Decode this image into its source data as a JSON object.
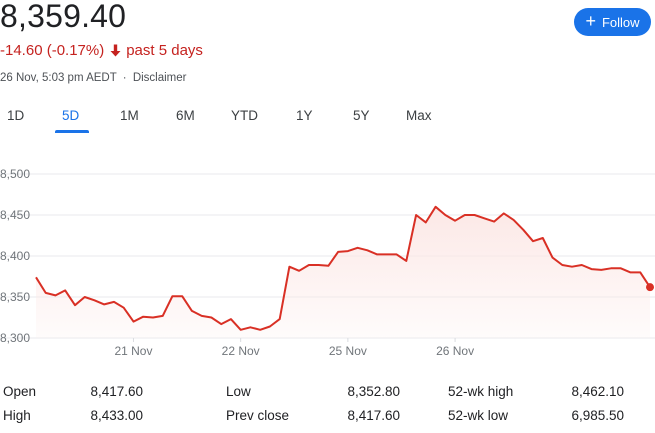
{
  "header": {
    "price": "8,359.40",
    "change": "-14.60 (-0.17%)",
    "period": "past 5 days",
    "timestamp": "26 Nov, 5:03 pm AEDT",
    "separator": "·",
    "disclaimer": "Disclaimer",
    "follow_label": "Follow",
    "change_color": "#c5221f"
  },
  "tabs": [
    {
      "label": "1D"
    },
    {
      "label": "5D",
      "active": true
    },
    {
      "label": "1M"
    },
    {
      "label": "6M"
    },
    {
      "label": "YTD"
    },
    {
      "label": "1Y"
    },
    {
      "label": "5Y"
    },
    {
      "label": "Max"
    }
  ],
  "chart_data": {
    "type": "line",
    "ylim": [
      8300,
      8500
    ],
    "y_ticks": [
      "8,500",
      "8,450",
      "8,400",
      "8,350",
      "8,300"
    ],
    "y_tick_values": [
      8500,
      8450,
      8400,
      8350,
      8300
    ],
    "x_tick_labels": [
      "21 Nov",
      "22 Nov",
      "25 Nov",
      "26 Nov"
    ],
    "x_tick_positions": [
      10,
      21,
      32,
      43
    ],
    "line_color": "#d93025",
    "grid": true,
    "values": [
      8374,
      8355,
      8352,
      8358,
      8340,
      8350,
      8346,
      8341,
      8344,
      8337,
      8320,
      8326,
      8325,
      8327,
      8351,
      8351,
      8333,
      8327,
      8325,
      8317,
      8323,
      8310,
      8313,
      8310,
      8314,
      8323,
      8387,
      8382,
      8389,
      8389,
      8388,
      8405,
      8406,
      8410,
      8407,
      8402,
      8402,
      8402,
      8394,
      8450,
      8441,
      8460,
      8450,
      8443,
      8450,
      8450,
      8446,
      8442,
      8452,
      8444,
      8432,
      8418,
      8422,
      8398,
      8389,
      8387,
      8389,
      8384,
      8383,
      8385,
      8385,
      8380,
      8380,
      8362
    ]
  },
  "stats": [
    {
      "label": "Open",
      "value": "8,417.60"
    },
    {
      "label": "High",
      "value": "8,433.00"
    },
    {
      "label": "Low",
      "value": "8,352.80"
    },
    {
      "label": "Prev close",
      "value": "8,417.60"
    },
    {
      "label": "52-wk high",
      "value": "8,462.10"
    },
    {
      "label": "52-wk low",
      "value": "6,985.50"
    }
  ]
}
